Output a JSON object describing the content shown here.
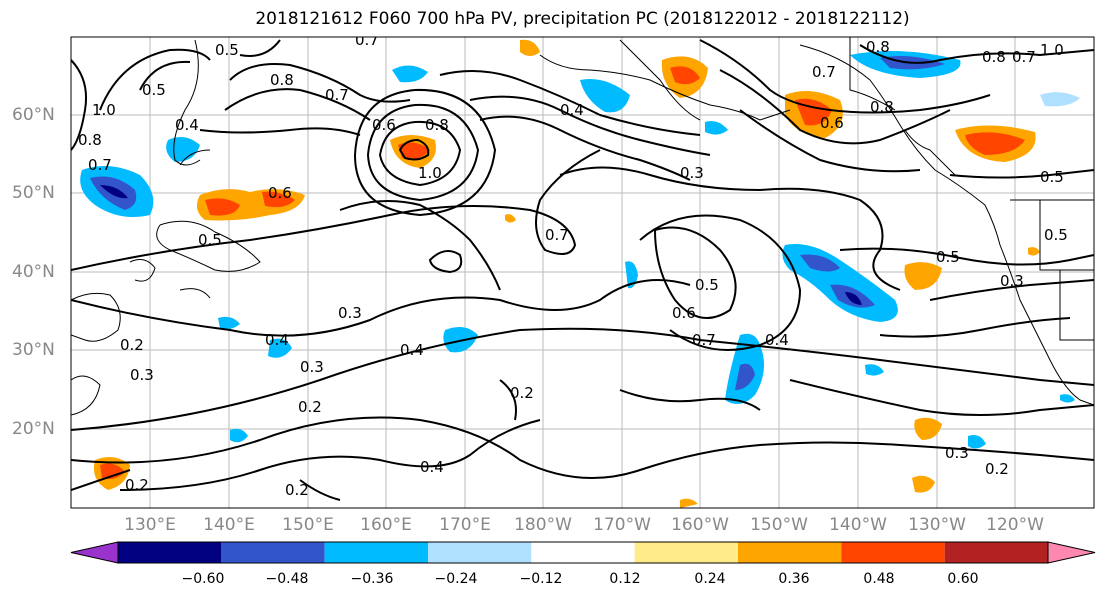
{
  "title": "2018121612 F060 700 hPa PV, precipitation PC (2018122012 - 2018122112)",
  "lon_labels": [
    "130°E",
    "140°E",
    "150°E",
    "160°E",
    "170°E",
    "180°W",
    "170°W",
    "160°W",
    "150°W",
    "140°W",
    "130°W",
    "120°W"
  ],
  "lat_labels": [
    "60°N",
    "50°N",
    "40°N",
    "30°N",
    "20°N"
  ],
  "colorbar": {
    "tick_labels": [
      "−0.60",
      "−0.48",
      "−0.36",
      "−0.24",
      "−0.12",
      "0.12",
      "0.24",
      "0.36",
      "0.48",
      "0.60"
    ],
    "colors": [
      "#9933cc",
      "#000080",
      "#3355cc",
      "#00bbff",
      "#b0e0ff",
      "#ffffff",
      "#ffeb88",
      "#ffa500",
      "#ff4500",
      "#b22222",
      "#ff88b0"
    ]
  },
  "contour_labels": [
    {
      "text": "0.5"
    },
    {
      "text": "0.7"
    },
    {
      "text": "0.8"
    },
    {
      "text": "0.7"
    },
    {
      "text": "1.0"
    },
    {
      "text": "0.4"
    },
    {
      "text": "0.8"
    },
    {
      "text": "0.7"
    },
    {
      "text": "0.6"
    },
    {
      "text": "0.5"
    },
    {
      "text": "0.5"
    },
    {
      "text": "0.4"
    },
    {
      "text": "0.6"
    },
    {
      "text": "0.8"
    },
    {
      "text": "1.0"
    },
    {
      "text": "0.4"
    },
    {
      "text": "0.3"
    },
    {
      "text": "0.7"
    },
    {
      "text": "0.5"
    },
    {
      "text": "0.6"
    },
    {
      "text": "0.7"
    },
    {
      "text": "0.4"
    },
    {
      "text": "0.3"
    },
    {
      "text": "0.2"
    },
    {
      "text": "0.4"
    },
    {
      "text": "0.3"
    },
    {
      "text": "0.3"
    },
    {
      "text": "0.2"
    },
    {
      "text": "0.2"
    },
    {
      "text": "0.2"
    },
    {
      "text": "0.4"
    },
    {
      "text": "0.2"
    },
    {
      "text": "0.3"
    },
    {
      "text": "0.2"
    },
    {
      "text": "0.5"
    },
    {
      "text": "0.3"
    },
    {
      "text": "0.5"
    },
    {
      "text": "0.7"
    },
    {
      "text": "0.8"
    },
    {
      "text": "0.6"
    },
    {
      "text": "0.8"
    },
    {
      "text": "0.8"
    },
    {
      "text": "0.7"
    },
    {
      "text": "1.0"
    },
    {
      "text": "0.5"
    }
  ]
}
